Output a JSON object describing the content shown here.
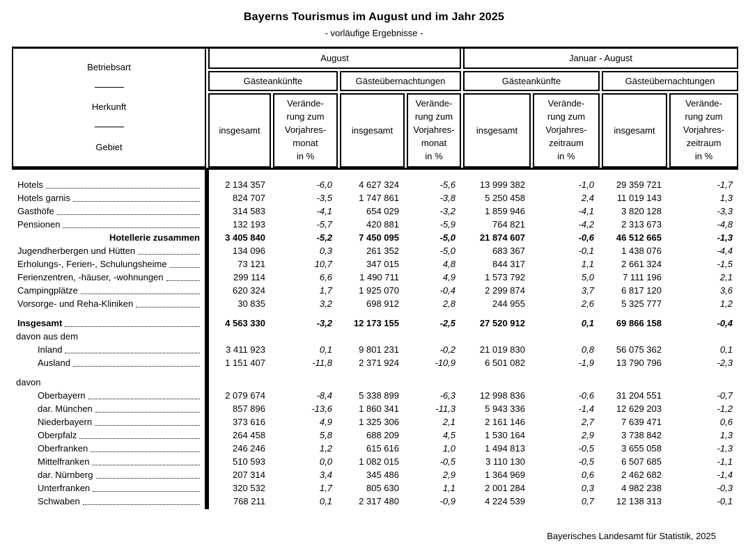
{
  "title": "Bayerns Tourismus im August und im Jahr 2025",
  "subtitle": "- vorläufige Ergebnisse -",
  "footer": "Bayerisches Landesamt für Statistik, 2025",
  "table": {
    "stub": {
      "line1": "Betriebsart",
      "line2": "Herkunft",
      "line3": "Gebiet"
    },
    "col_groups": [
      {
        "label": "August",
        "subgroups": [
          {
            "label": "Gästeankünfte",
            "cols": [
              "insgesamt",
              "Verände-\nrung zum\nVorjahres-\nmonat\nin %"
            ]
          },
          {
            "label": "Gästeübernachtungen",
            "cols": [
              "insgesamt",
              "Verände-\nrung zum\nVorjahres-\nmonat\nin %"
            ]
          }
        ]
      },
      {
        "label": "Januar - August",
        "subgroups": [
          {
            "label": "Gästeankünfte",
            "cols": [
              "insgesamt",
              "Verände-\nrung zum\nVorjahres-\nzeitraum\nin %"
            ]
          },
          {
            "label": "Gästeübernachtungen",
            "cols": [
              "insgesamt",
              "Verände-\nrung zum\nVorjahres-\nzeitraum\nin %"
            ]
          }
        ]
      }
    ],
    "rows": [
      {
        "label": "Hotels",
        "ind": "l1",
        "dots": true,
        "values": [
          "2 134 357",
          "-6,0",
          "4 627 324",
          "-5,6",
          "13 999 382",
          "-1,0",
          "29 359 721",
          "-1,7"
        ]
      },
      {
        "label": "Hotels garnis",
        "ind": "l1",
        "dots": true,
        "values": [
          "824 707",
          "-3,5",
          "1 747 861",
          "-3,8",
          "5 250 458",
          "2,4",
          "11 019 143",
          "1,3"
        ]
      },
      {
        "label": "Gasthöfe",
        "ind": "l1",
        "dots": true,
        "values": [
          "314 583",
          "-4,1",
          "654 029",
          "-3,2",
          "1 859 946",
          "-4,1",
          "3 820 128",
          "-3,3"
        ]
      },
      {
        "label": "Pensionen",
        "ind": "l1",
        "dots": true,
        "values": [
          "132 193",
          "-5,7",
          "420 881",
          "-5,9",
          "764 821",
          "-4,2",
          "2 313 673",
          "-4,8"
        ]
      },
      {
        "label": "Hotellerie zusammen",
        "ind": "right",
        "bold": true,
        "dots": false,
        "values": [
          "3 405 840",
          "-5,2",
          "7 450 095",
          "-5,0",
          "21 874 607",
          "-0,6",
          "46 512 665",
          "-1,3"
        ]
      },
      {
        "label": "Jugendherbergen und Hütten",
        "ind": "l1",
        "dots": true,
        "values": [
          "134 096",
          "0,3",
          "261 352",
          "-5,0",
          "683 367",
          "-0,1",
          "1 438 076",
          "-4,4"
        ]
      },
      {
        "label": "Erholungs-, Ferien-, Schulungsheime",
        "ind": "l1",
        "dots": true,
        "values": [
          "73 121",
          "10,7",
          "347 015",
          "4,8",
          "844 317",
          "1,1",
          "2 661 324",
          "-1,5"
        ]
      },
      {
        "label": "Ferienzentren, -häuser, -wohnungen",
        "ind": "l1",
        "dots": true,
        "values": [
          "299 114",
          "6,6",
          "1 490 711",
          "4,9",
          "1 573 792",
          "5,0",
          "7 111 196",
          "2,1"
        ]
      },
      {
        "label": "Campingplätze",
        "ind": "l1",
        "dots": true,
        "values": [
          "620 324",
          "1,7",
          "1 925 070",
          "-0,4",
          "2 299 874",
          "3,7",
          "6 817 120",
          "3,6"
        ]
      },
      {
        "label": "Vorsorge- und Reha-Kliniken",
        "ind": "l1",
        "dots": true,
        "values": [
          "30 835",
          "3,2",
          "698 912",
          "2,8",
          "244 955",
          "2,6",
          "5 325 777",
          "1,2"
        ]
      },
      {
        "spacer": true
      },
      {
        "label": "Insgesamt",
        "ind": "l1",
        "bold": true,
        "dots": true,
        "values": [
          "4 563 330",
          "-3,2",
          "12 173 155",
          "-2,5",
          "27 520 912",
          "0,1",
          "69 866 158",
          "-0,4"
        ]
      },
      {
        "label": "davon aus dem",
        "ind": "l0",
        "dots": false
      },
      {
        "label": "Inland",
        "ind": "l2",
        "dots": true,
        "values": [
          "3 411 923",
          "0,1",
          "9 801 231",
          "-0,2",
          "21 019 830",
          "0,8",
          "56 075 362",
          "0,1"
        ]
      },
      {
        "label": "Ausland",
        "ind": "l2",
        "dots": true,
        "values": [
          "1 151 407",
          "-11,8",
          "2 371 924",
          "-10,9",
          "6 501 082",
          "-1,9",
          "13 790 796",
          "-2,3"
        ]
      },
      {
        "spacer": true
      },
      {
        "label": "davon",
        "ind": "l0",
        "dots": false
      },
      {
        "label": "Oberbayern",
        "ind": "l2",
        "dots": true,
        "values": [
          "2 079 674",
          "-8,4",
          "5 338 899",
          "-6,3",
          "12 998 836",
          "-0,6",
          "31 204 551",
          "-0,7"
        ]
      },
      {
        "label": "dar. München",
        "ind": "l2",
        "dots": true,
        "values": [
          "857 896",
          "-13,6",
          "1 860 341",
          "-11,3",
          "5 943 336",
          "-1,4",
          "12 629 203",
          "-1,2"
        ]
      },
      {
        "label": "Niederbayern",
        "ind": "l2",
        "dots": true,
        "values": [
          "373 616",
          "4,9",
          "1 325 306",
          "2,1",
          "2 161 146",
          "2,7",
          "7 639 471",
          "0,6"
        ]
      },
      {
        "label": "Oberpfalz",
        "ind": "l2",
        "dots": true,
        "values": [
          "264 458",
          "5,8",
          "688 209",
          "4,5",
          "1 530 164",
          "2,9",
          "3 738 842",
          "1,3"
        ]
      },
      {
        "label": "Oberfranken",
        "ind": "l2",
        "dots": true,
        "values": [
          "246 246",
          "1,2",
          "615 616",
          "1,0",
          "1 494 813",
          "-0,5",
          "3 655 058",
          "-1,3"
        ]
      },
      {
        "label": "Mittelfranken",
        "ind": "l2",
        "dots": true,
        "values": [
          "510 593",
          "0,0",
          "1 082 015",
          "-0,5",
          "3 110 130",
          "-0,5",
          "6 507 685",
          "-1,1"
        ]
      },
      {
        "label": "dar. Nürnberg",
        "ind": "l2",
        "dots": true,
        "values": [
          "207 314",
          "3,4",
          "345 486",
          "2,9",
          "1 364 969",
          "0,6",
          "2 462 682",
          "-1,4"
        ]
      },
      {
        "label": "Unterfranken",
        "ind": "l2",
        "dots": true,
        "values": [
          "320 532",
          "1,7",
          "805 630",
          "1,1",
          "2 001 284",
          "0,3",
          "4 982 238",
          "-0,3"
        ]
      },
      {
        "label": "Schwaben",
        "ind": "l2",
        "dots": true,
        "values": [
          "768 211",
          "0,1",
          "2 317 480",
          "-0,9",
          "4 224 539",
          "0,7",
          "12 138 313",
          "-0,1"
        ]
      }
    ]
  }
}
